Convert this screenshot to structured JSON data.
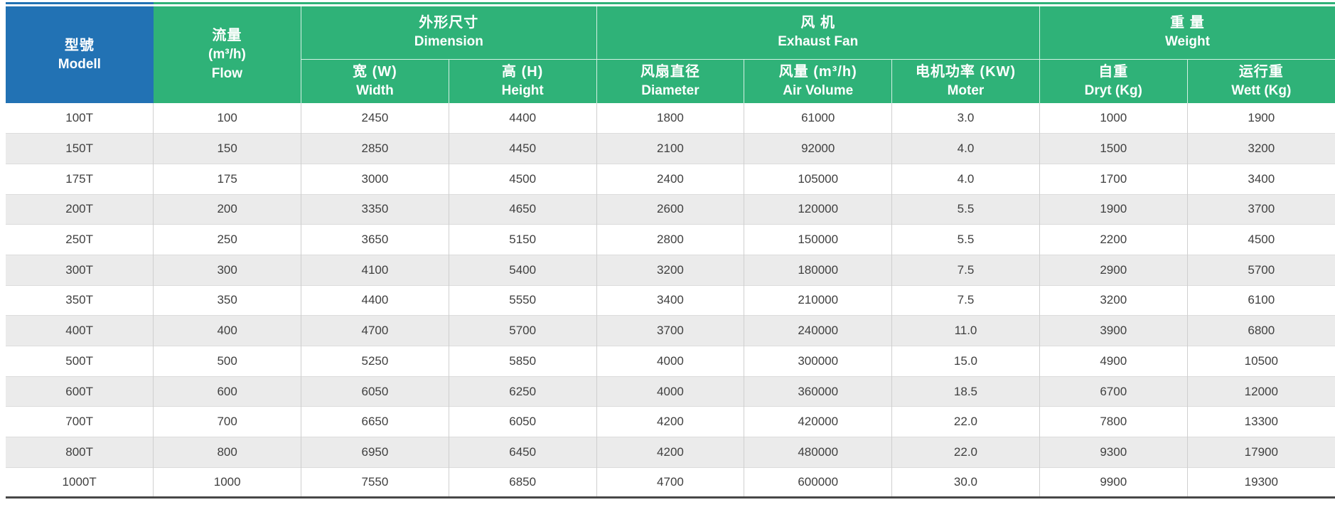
{
  "chart_data": {
    "type": "table",
    "header": {
      "model": {
        "zh": "型號",
        "en": "Modell"
      },
      "flow": {
        "zh": "流量",
        "unit": "(m³/h)",
        "en": "Flow"
      },
      "groups": {
        "dimension": {
          "zh": "外形尺寸",
          "en": "Dimension"
        },
        "exhaust_fan": {
          "zh": "风 机",
          "en": "Exhaust Fan"
        },
        "weight": {
          "zh": "重 量",
          "en": "Weight"
        }
      },
      "sub": {
        "width": {
          "zh": "宽 (W)",
          "en": "Width"
        },
        "height": {
          "zh": "高 (H)",
          "en": "Height"
        },
        "diameter": {
          "zh": "风扇直径",
          "en": "Diameter"
        },
        "air_volume": {
          "zh": "风量 (m³/h)",
          "en": "Air Volume"
        },
        "motor": {
          "zh": "电机功率 (KW)",
          "en": "Moter"
        },
        "dry": {
          "zh": "自重",
          "en": "Dryt (Kg)"
        },
        "wet": {
          "zh": "运行重",
          "en": "Wett (Kg)"
        }
      }
    },
    "col_keys": [
      "model",
      "flow",
      "width",
      "height",
      "diameter",
      "air_volume",
      "motor_power_kw",
      "dry_weight_kg",
      "wet_weight_kg"
    ],
    "rows": [
      [
        "100T",
        "100",
        "2450",
        "4400",
        "1800",
        "61000",
        "3.0",
        "1000",
        "1900"
      ],
      [
        "150T",
        "150",
        "2850",
        "4450",
        "2100",
        "92000",
        "4.0",
        "1500",
        "3200"
      ],
      [
        "175T",
        "175",
        "3000",
        "4500",
        "2400",
        "105000",
        "4.0",
        "1700",
        "3400"
      ],
      [
        "200T",
        "200",
        "3350",
        "4650",
        "2600",
        "120000",
        "5.5",
        "1900",
        "3700"
      ],
      [
        "250T",
        "250",
        "3650",
        "5150",
        "2800",
        "150000",
        "5.5",
        "2200",
        "4500"
      ],
      [
        "300T",
        "300",
        "4100",
        "5400",
        "3200",
        "180000",
        "7.5",
        "2900",
        "5700"
      ],
      [
        "350T",
        "350",
        "4400",
        "5550",
        "3400",
        "210000",
        "7.5",
        "3200",
        "6100"
      ],
      [
        "400T",
        "400",
        "4700",
        "5700",
        "3700",
        "240000",
        "11.0",
        "3900",
        "6800"
      ],
      [
        "500T",
        "500",
        "5250",
        "5850",
        "4000",
        "300000",
        "15.0",
        "4900",
        "10500"
      ],
      [
        "600T",
        "600",
        "6050",
        "6250",
        "4000",
        "360000",
        "18.5",
        "6700",
        "12000"
      ],
      [
        "700T",
        "700",
        "6650",
        "6050",
        "4200",
        "420000",
        "22.0",
        "7800",
        "13300"
      ],
      [
        "800T",
        "800",
        "6950",
        "6450",
        "4200",
        "480000",
        "22.0",
        "9300",
        "17900"
      ],
      [
        "1000T",
        "1000",
        "7550",
        "6850",
        "4700",
        "600000",
        "30.0",
        "9900",
        "19300"
      ]
    ]
  },
  "colors": {
    "blue": "#2272b4",
    "green": "#2fb278",
    "row_alt": "#ebebeb",
    "grid_line": "#cfcfcf",
    "row_line": "#dcdcdc",
    "text": "#3f3f3f",
    "header_text": "#ffffff",
    "bottom_rule": "#474747"
  }
}
